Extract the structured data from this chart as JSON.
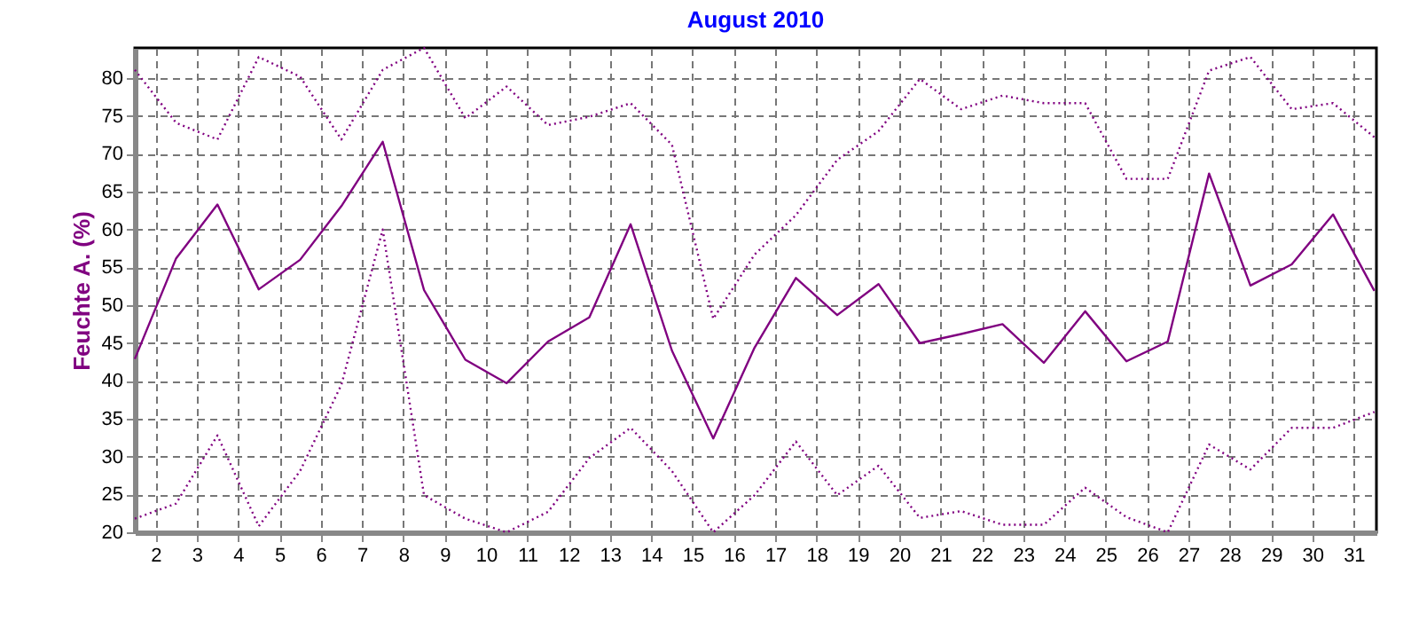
{
  "chart_data": {
    "type": "line",
    "title": "August 2010",
    "ylabel": "Feuchte A.  (%)",
    "x": [
      1.5,
      2.5,
      3.5,
      4.5,
      5.5,
      6.5,
      7.5,
      8.5,
      9.5,
      10.5,
      11.5,
      12.5,
      13.5,
      14.5,
      15.5,
      16.5,
      17.5,
      18.5,
      19.5,
      20.5,
      21.5,
      22.5,
      23.5,
      24.5,
      25.5,
      26.5,
      27.5,
      28.5,
      29.5,
      30.5,
      31.5
    ],
    "series": [
      {
        "color": "#800080",
        "line_style": "dotted",
        "values": [
          81.1,
          74.1,
          71.9,
          82.8,
          80.2,
          71.9,
          81.1,
          84,
          74.7,
          78.9,
          73.8,
          74.9,
          76.7,
          71.2,
          48.2,
          56.7,
          61.9,
          69.2,
          73,
          79.9,
          75.9,
          77.7,
          76.7,
          76.7,
          66.7,
          66.7,
          81,
          82.8,
          75.9,
          76.7,
          72.2
        ]
      },
      {
        "color": "#800080",
        "line_style": "solid",
        "values": [
          42.9,
          56.2,
          63.3,
          52.1,
          56,
          63.1,
          71.6,
          52,
          42.8,
          39.7,
          45.2,
          48.4,
          60.7,
          44,
          32.4,
          44.4,
          53.6,
          48.7,
          52.8,
          45,
          46.2,
          47.5,
          42.4,
          49.2,
          42.6,
          45.2,
          67.4,
          52.6,
          55.4,
          62,
          51.9
        ]
      },
      {
        "color": "#800080",
        "line_style": "dotted",
        "values": [
          21.8,
          23.8,
          32.8,
          20.8,
          28.1,
          39.5,
          60,
          24.9,
          21.8,
          20,
          22.7,
          29.8,
          33.8,
          28.1,
          20,
          24.9,
          32,
          24.9,
          28.8,
          21.9,
          22.8,
          21,
          21,
          25.9,
          22,
          20,
          31.6,
          28.3,
          33.8,
          33.8,
          35.9
        ]
      }
    ],
    "xlim": [
      1.5,
      31.55
    ],
    "xticks": [
      2,
      3,
      4,
      5,
      6,
      7,
      8,
      9,
      10,
      11,
      12,
      13,
      14,
      15,
      16,
      17,
      18,
      19,
      20,
      21,
      22,
      23,
      24,
      25,
      26,
      27,
      28,
      29,
      30,
      31
    ],
    "ylim": [
      20,
      84
    ],
    "yticks": [
      20,
      25,
      30,
      35,
      40,
      45,
      50,
      55,
      60,
      65,
      70,
      75,
      80
    ],
    "grid": true,
    "marker": "none"
  }
}
